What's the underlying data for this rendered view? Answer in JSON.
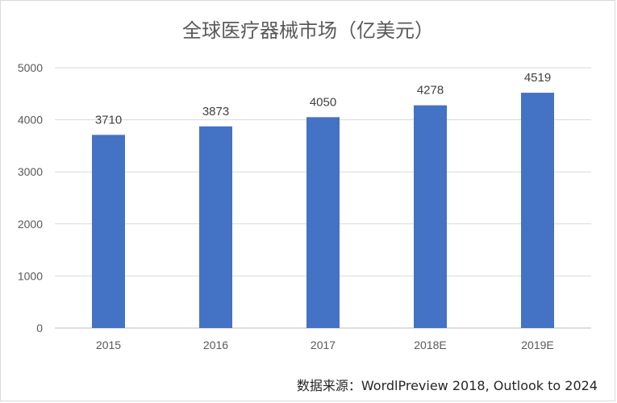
{
  "chart_data": {
    "type": "bar",
    "title": "全球医疗器械市场（亿美元）",
    "categories": [
      "2015",
      "2016",
      "2017",
      "2018E",
      "2019E"
    ],
    "values": [
      3710,
      3873,
      4050,
      4278,
      4519
    ],
    "data_labels": [
      "3710",
      "3873",
      "4050",
      "4278",
      "4519"
    ],
    "ylim": [
      0,
      5000
    ],
    "yticks": [
      0,
      1000,
      2000,
      3000,
      4000,
      5000
    ],
    "grid": true,
    "legend": "none",
    "bar_color": "#4472c4"
  },
  "source_note": "数据来源：WordlPreview 2018, Outlook to 2024"
}
